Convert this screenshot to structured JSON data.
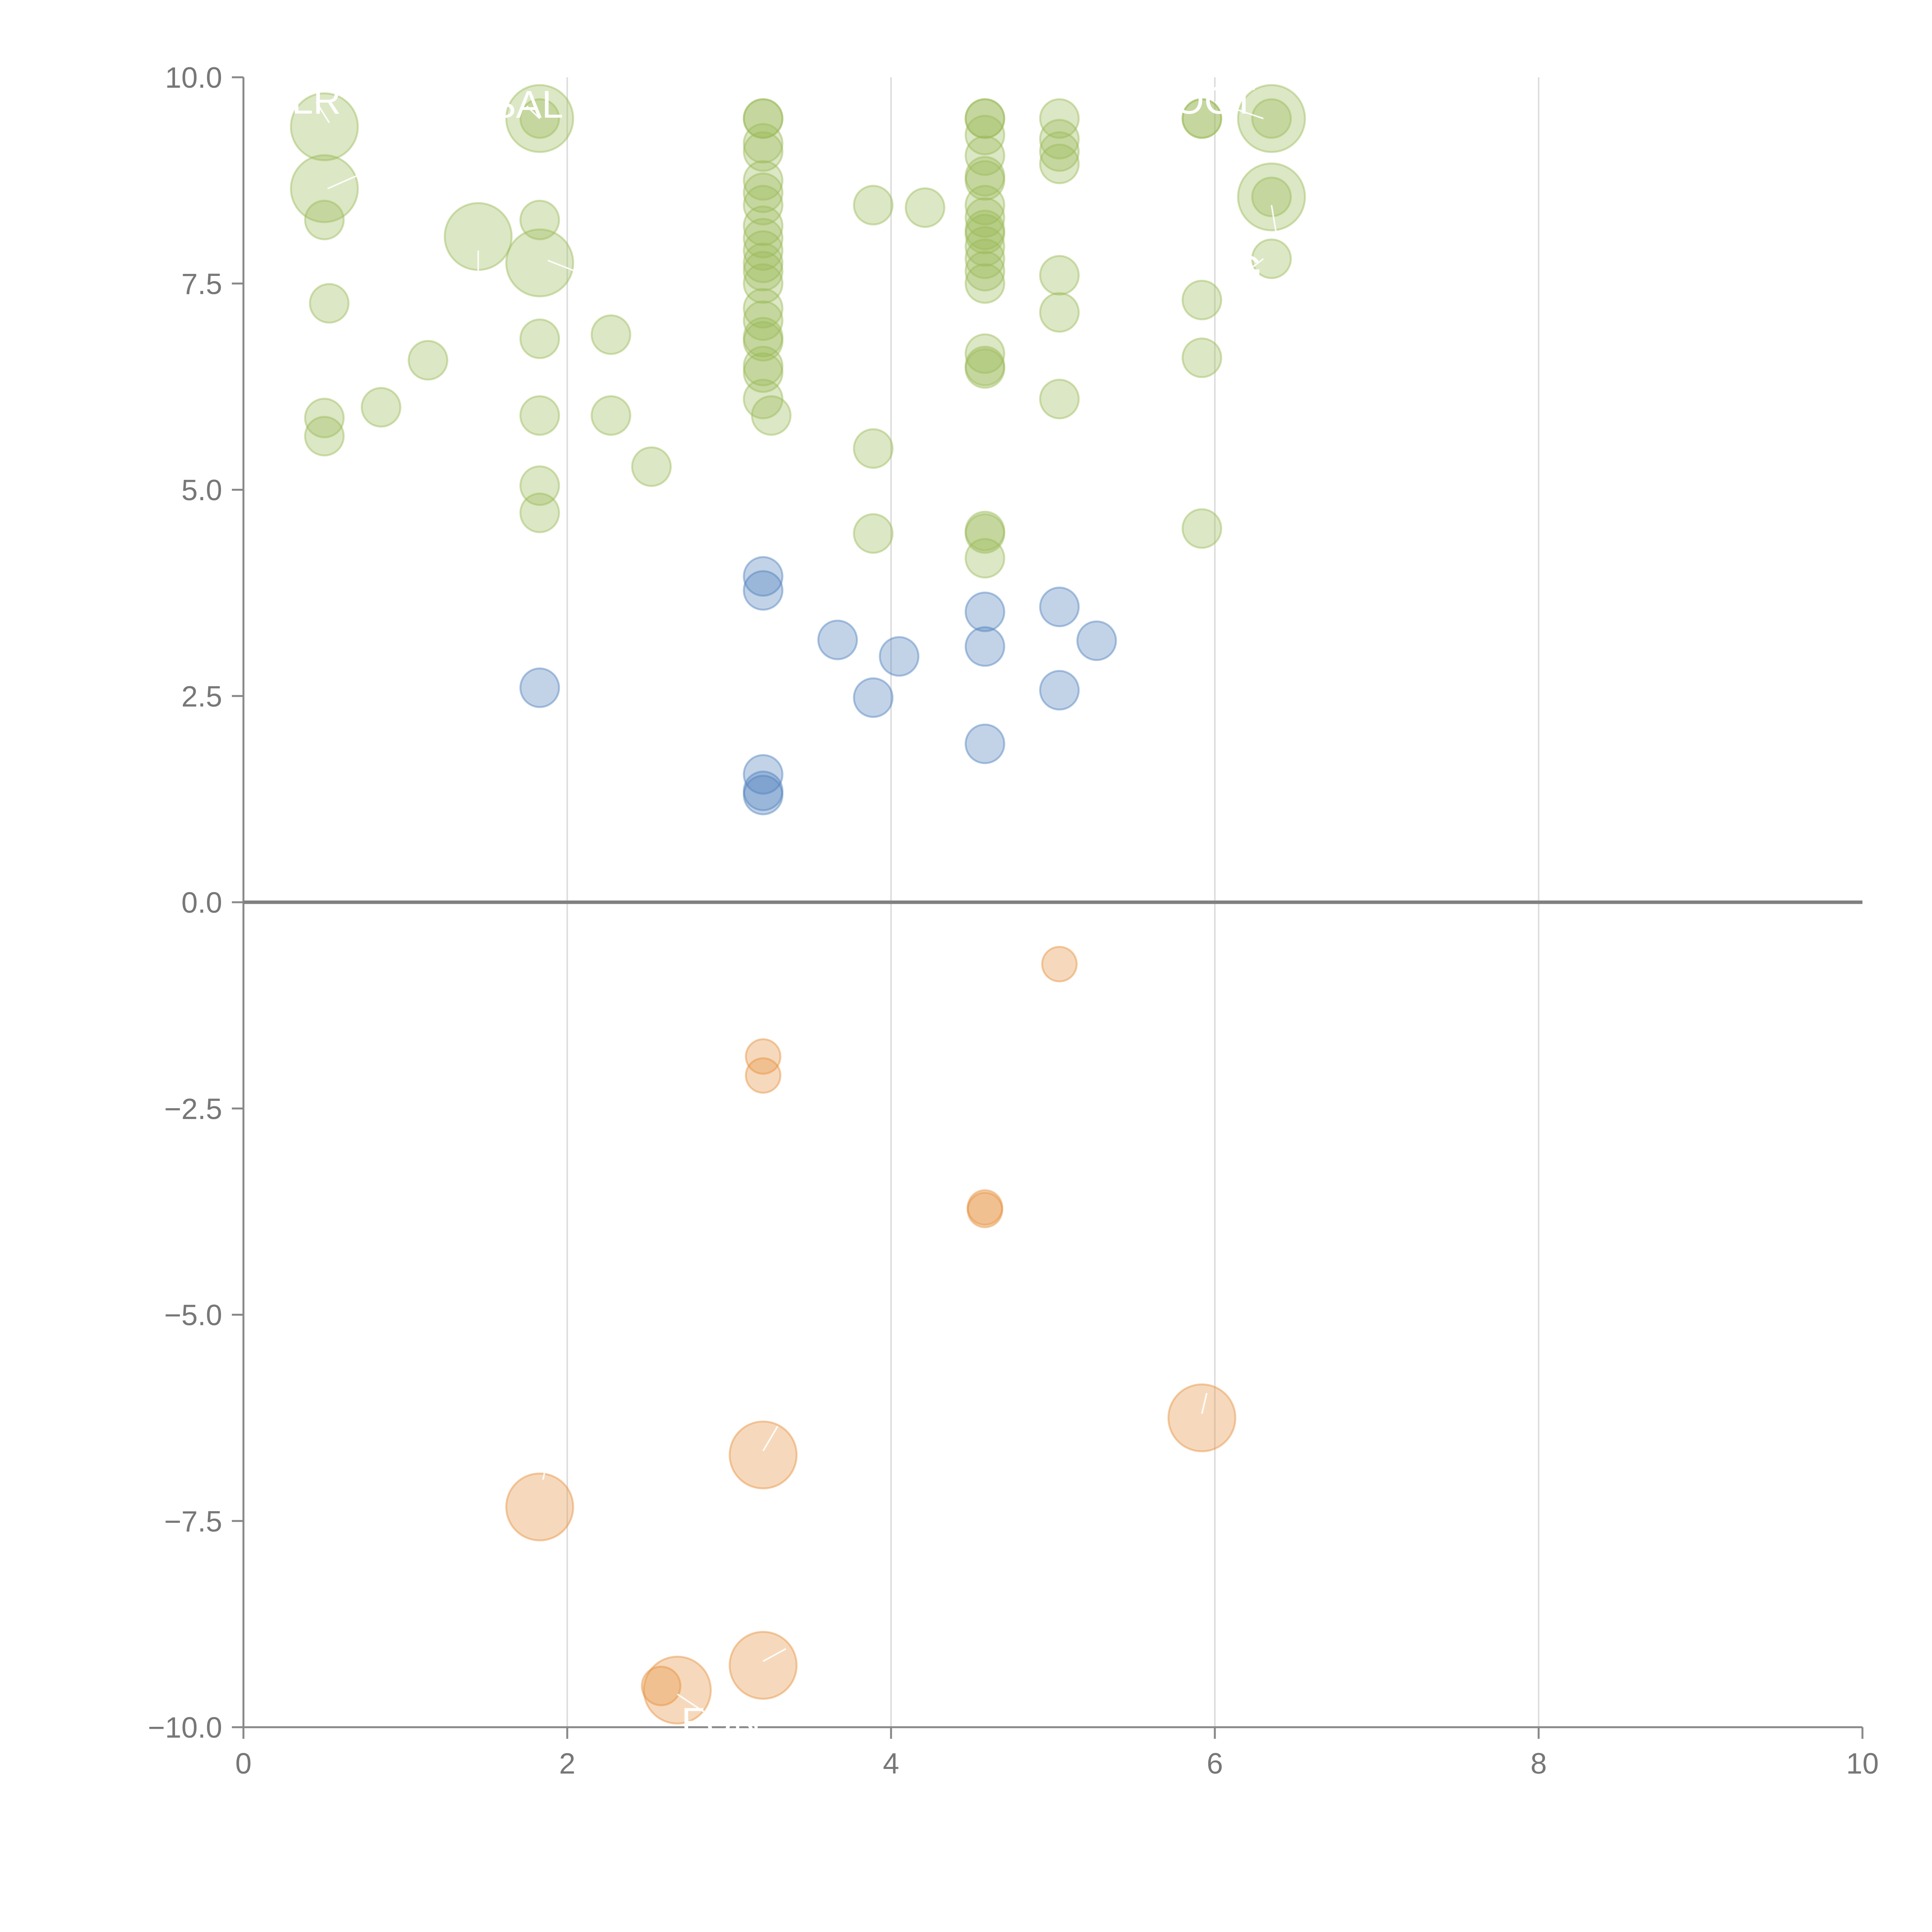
{
  "chart_data": {
    "type": "scatter",
    "title": "",
    "xlabel": "",
    "ylabel": "",
    "xlim": [
      0,
      10
    ],
    "ylim": [
      -10,
      10
    ],
    "x_ticks": [
      "0",
      "2",
      "4",
      "6",
      "8",
      "10"
    ],
    "y_ticks": [
      "10.0",
      "7.5",
      "5.0",
      "2.5",
      "0.0",
      "−2.5",
      "−5.0",
      "−7.5",
      "−10.0"
    ],
    "grid": "vertical",
    "colors": {
      "green": "#9bbb59",
      "blue": "#4f81bd",
      "orange": "#e6913f"
    },
    "series": [
      {
        "name": "green",
        "points": [
          {
            "x": 0.5,
            "y": 9.4,
            "s": 3
          },
          {
            "x": 0.5,
            "y": 8.65,
            "s": 3
          },
          {
            "x": 0.5,
            "y": 8.27,
            "s": 1
          },
          {
            "x": 0.53,
            "y": 7.26,
            "s": 1
          },
          {
            "x": 0.5,
            "y": 5.87,
            "s": 1
          },
          {
            "x": 0.5,
            "y": 5.65,
            "s": 1
          },
          {
            "x": 0.85,
            "y": 6.0,
            "s": 1
          },
          {
            "x": 1.14,
            "y": 6.57,
            "s": 1
          },
          {
            "x": 1.45,
            "y": 8.07,
            "s": 3
          },
          {
            "x": 1.83,
            "y": 9.5,
            "s": 3
          },
          {
            "x": 1.83,
            "y": 9.5,
            "s": 1
          },
          {
            "x": 1.83,
            "y": 8.27,
            "s": 1
          },
          {
            "x": 1.83,
            "y": 7.75,
            "s": 3
          },
          {
            "x": 1.83,
            "y": 6.83,
            "s": 1
          },
          {
            "x": 1.83,
            "y": 5.9,
            "s": 1
          },
          {
            "x": 1.83,
            "y": 5.05,
            "s": 1
          },
          {
            "x": 1.83,
            "y": 4.72,
            "s": 1
          },
          {
            "x": 2.27,
            "y": 6.88,
            "s": 1
          },
          {
            "x": 2.27,
            "y": 5.9,
            "s": 1
          },
          {
            "x": 2.52,
            "y": 5.28,
            "s": 1
          },
          {
            "x": 3.21,
            "y": 9.5,
            "s": 1
          },
          {
            "x": 3.21,
            "y": 9.5,
            "s": 1
          },
          {
            "x": 3.21,
            "y": 9.2,
            "s": 1
          },
          {
            "x": 3.21,
            "y": 9.1,
            "s": 1
          },
          {
            "x": 3.21,
            "y": 8.75,
            "s": 1
          },
          {
            "x": 3.21,
            "y": 8.6,
            "s": 1
          },
          {
            "x": 3.21,
            "y": 8.45,
            "s": 1
          },
          {
            "x": 3.21,
            "y": 8.2,
            "s": 1
          },
          {
            "x": 3.21,
            "y": 8.05,
            "s": 1
          },
          {
            "x": 3.21,
            "y": 7.9,
            "s": 1
          },
          {
            "x": 3.21,
            "y": 7.75,
            "s": 1
          },
          {
            "x": 3.21,
            "y": 7.65,
            "s": 1
          },
          {
            "x": 3.21,
            "y": 7.5,
            "s": 1
          },
          {
            "x": 3.21,
            "y": 7.2,
            "s": 1
          },
          {
            "x": 3.21,
            "y": 7.05,
            "s": 1
          },
          {
            "x": 3.21,
            "y": 6.85,
            "s": 1
          },
          {
            "x": 3.21,
            "y": 6.8,
            "s": 1
          },
          {
            "x": 3.21,
            "y": 6.5,
            "s": 1
          },
          {
            "x": 3.21,
            "y": 6.42,
            "s": 1
          },
          {
            "x": 3.21,
            "y": 6.1,
            "s": 1
          },
          {
            "x": 3.26,
            "y": 5.9,
            "s": 1
          },
          {
            "x": 3.89,
            "y": 8.45,
            "s": 1
          },
          {
            "x": 4.21,
            "y": 8.42,
            "s": 1
          },
          {
            "x": 3.89,
            "y": 5.5,
            "s": 1
          },
          {
            "x": 3.89,
            "y": 4.47,
            "s": 1
          },
          {
            "x": 4.58,
            "y": 9.5,
            "s": 1
          },
          {
            "x": 4.58,
            "y": 9.5,
            "s": 1
          },
          {
            "x": 4.58,
            "y": 9.3,
            "s": 1
          },
          {
            "x": 4.58,
            "y": 9.05,
            "s": 1
          },
          {
            "x": 4.58,
            "y": 8.8,
            "s": 1
          },
          {
            "x": 4.58,
            "y": 8.75,
            "s": 1
          },
          {
            "x": 4.58,
            "y": 8.45,
            "s": 1
          },
          {
            "x": 4.58,
            "y": 8.3,
            "s": 1
          },
          {
            "x": 4.58,
            "y": 8.15,
            "s": 1
          },
          {
            "x": 4.58,
            "y": 8.1,
            "s": 1
          },
          {
            "x": 4.58,
            "y": 7.95,
            "s": 1
          },
          {
            "x": 4.58,
            "y": 7.8,
            "s": 1
          },
          {
            "x": 4.58,
            "y": 7.65,
            "s": 1
          },
          {
            "x": 4.58,
            "y": 7.5,
            "s": 1
          },
          {
            "x": 4.58,
            "y": 6.65,
            "s": 1
          },
          {
            "x": 4.58,
            "y": 6.5,
            "s": 1
          },
          {
            "x": 4.58,
            "y": 6.47,
            "s": 1
          },
          {
            "x": 4.58,
            "y": 4.5,
            "s": 1
          },
          {
            "x": 4.58,
            "y": 4.47,
            "s": 1
          },
          {
            "x": 4.58,
            "y": 4.17,
            "s": 1
          },
          {
            "x": 5.04,
            "y": 9.5,
            "s": 1
          },
          {
            "x": 5.04,
            "y": 9.25,
            "s": 1
          },
          {
            "x": 5.04,
            "y": 9.1,
            "s": 1
          },
          {
            "x": 5.04,
            "y": 8.95,
            "s": 1
          },
          {
            "x": 5.04,
            "y": 7.6,
            "s": 1
          },
          {
            "x": 5.04,
            "y": 7.15,
            "s": 1
          },
          {
            "x": 5.04,
            "y": 6.1,
            "s": 1
          },
          {
            "x": 5.92,
            "y": 9.5,
            "s": 1
          },
          {
            "x": 5.92,
            "y": 9.5,
            "s": 1
          },
          {
            "x": 5.92,
            "y": 7.3,
            "s": 1
          },
          {
            "x": 5.92,
            "y": 6.6,
            "s": 1
          },
          {
            "x": 5.92,
            "y": 4.53,
            "s": 1
          },
          {
            "x": 6.35,
            "y": 9.5,
            "s": 3
          },
          {
            "x": 6.35,
            "y": 9.5,
            "s": 1
          },
          {
            "x": 6.35,
            "y": 8.55,
            "s": 3
          },
          {
            "x": 6.35,
            "y": 8.55,
            "s": 1
          },
          {
            "x": 6.35,
            "y": 7.8,
            "s": 1
          }
        ]
      },
      {
        "name": "blue",
        "points": [
          {
            "x": 1.83,
            "y": 2.6,
            "s": 1
          },
          {
            "x": 3.21,
            "y": 3.95,
            "s": 1
          },
          {
            "x": 3.21,
            "y": 3.78,
            "s": 1
          },
          {
            "x": 3.21,
            "y": 1.55,
            "s": 1
          },
          {
            "x": 3.21,
            "y": 1.35,
            "s": 1
          },
          {
            "x": 3.21,
            "y": 1.3,
            "s": 1
          },
          {
            "x": 3.67,
            "y": 3.18,
            "s": 1
          },
          {
            "x": 3.89,
            "y": 2.48,
            "s": 1
          },
          {
            "x": 4.05,
            "y": 2.98,
            "s": 1
          },
          {
            "x": 4.58,
            "y": 3.52,
            "s": 1
          },
          {
            "x": 4.58,
            "y": 3.1,
            "s": 1
          },
          {
            "x": 4.58,
            "y": 1.92,
            "s": 1
          },
          {
            "x": 5.04,
            "y": 3.58,
            "s": 1
          },
          {
            "x": 5.04,
            "y": 2.57,
            "s": 1
          },
          {
            "x": 5.27,
            "y": 3.17,
            "s": 1
          }
        ]
      },
      {
        "name": "orange",
        "points": [
          {
            "x": 5.04,
            "y": -0.75,
            "s": 0.8
          },
          {
            "x": 3.21,
            "y": -1.87,
            "s": 0.8
          },
          {
            "x": 3.21,
            "y": -2.1,
            "s": 0.8
          },
          {
            "x": 4.58,
            "y": -3.7,
            "s": 0.8
          },
          {
            "x": 4.58,
            "y": -3.73,
            "s": 0.8
          },
          {
            "x": 5.92,
            "y": -6.25,
            "s": 3
          },
          {
            "x": 3.21,
            "y": -6.7,
            "s": 3
          },
          {
            "x": 1.83,
            "y": -7.33,
            "s": 3
          },
          {
            "x": 3.21,
            "y": -9.25,
            "s": 3
          },
          {
            "x": 2.68,
            "y": -9.55,
            "s": 3
          },
          {
            "x": 2.58,
            "y": -9.5,
            "s": 1
          }
        ]
      }
    ],
    "annotations": [
      {
        "text": "LR",
        "x": 0.45,
        "y": 9.7,
        "px": 0.53,
        "py": 9.45
      },
      {
        "text": "",
        "x": 0.75,
        "y": 8.85,
        "px": 0.52,
        "py": 8.65
      },
      {
        "text": "SAL",
        "x": 1.75,
        "y": 9.65,
        "px": 1.83,
        "py": 9.5
      },
      {
        "text": "",
        "x": 1.45,
        "y": 7.55,
        "px": 1.45,
        "py": 7.9
      },
      {
        "text": "",
        "x": 2.05,
        "y": 7.65,
        "px": 1.88,
        "py": 7.78
      },
      {
        "text": "OCT",
        "x": 6.0,
        "y": 9.7,
        "px": 6.3,
        "py": 9.5
      },
      {
        "text": "",
        "x": 6.38,
        "y": 8.1,
        "px": 6.35,
        "py": 8.45
      },
      {
        "text": "G",
        "x": 6.2,
        "y": 7.65,
        "px": 6.3,
        "py": 7.8
      },
      {
        "text": "FUN",
        "x": 2.95,
        "y": -9.95,
        "px": 2.68,
        "py": -9.6
      },
      {
        "text": "",
        "x": 3.21,
        "y": -9.2,
        "px": 3.35,
        "py": -9.05
      },
      {
        "text": "",
        "x": 3.3,
        "y": -6.35,
        "px": 3.21,
        "py": -6.65
      },
      {
        "text": "",
        "x": 5.95,
        "y": -5.95,
        "px": 5.92,
        "py": -6.2
      },
      {
        "text": "",
        "x": 1.93,
        "y": -6.3,
        "px": 1.85,
        "py": -7.0
      },
      {
        "text": "",
        "x": 3.95,
        "y": -7.9,
        "px": 3.9,
        "py": -8.1
      }
    ]
  }
}
